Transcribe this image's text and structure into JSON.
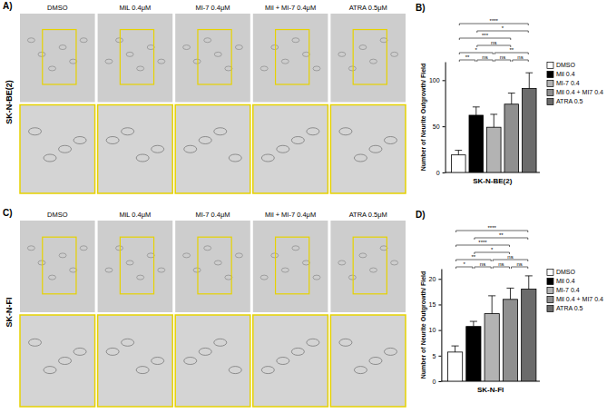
{
  "chart_data": [
    {
      "type": "bar",
      "panel_label": "B)",
      "x_label": "SK-N-BE(2)",
      "y_label": "Number of Neurite Outgrowth/ Field",
      "categories": [
        "DMSO",
        "Mil 0.4",
        "MI-7 0.4",
        "Mil 0.4 + MI7 0.4",
        "ATRA 0.5"
      ],
      "values": [
        19,
        62,
        49,
        74,
        91
      ],
      "errors": [
        5,
        9,
        14,
        12,
        17
      ],
      "colors": [
        "#ffffff",
        "#000000",
        "#b3b3b3",
        "#8f8f8f",
        "#6b6b6b"
      ],
      "ylim": [
        0,
        120
      ],
      "yticks": [
        0,
        50,
        100
      ],
      "grid": false,
      "legend": "right",
      "tick_labels": "y",
      "annotations": [
        {
          "from": 0,
          "to": 1,
          "label": "**"
        },
        {
          "from": 1,
          "to": 2,
          "label": "ns"
        },
        {
          "from": 2,
          "to": 3,
          "label": "ns"
        },
        {
          "from": 3,
          "to": 4,
          "label": "ns"
        },
        {
          "from": 0,
          "to": 2,
          "label": "*"
        },
        {
          "from": 1,
          "to": 3,
          "label": "ns"
        },
        {
          "from": 2,
          "to": 4,
          "label": "**"
        },
        {
          "from": 0,
          "to": 3,
          "label": "***"
        },
        {
          "from": 1,
          "to": 4,
          "label": "*"
        },
        {
          "from": 0,
          "to": 4,
          "label": "****"
        }
      ]
    },
    {
      "type": "bar",
      "panel_label": "D)",
      "x_label": "SK-N-FI",
      "y_label": "Number of Neurite Outgrowth/ Field",
      "categories": [
        "DMSO",
        "Mil 0.4",
        "MI-7 0.4",
        "Mil 0.4 + MI7 0.4",
        "ATRA 0.5"
      ],
      "values": [
        5.7,
        10.7,
        13.2,
        16,
        18
      ],
      "errors": [
        1.2,
        1,
        3.5,
        2.2,
        2.6
      ],
      "colors": [
        "#ffffff",
        "#000000",
        "#b3b3b3",
        "#8f8f8f",
        "#6b6b6b"
      ],
      "ylim": [
        0,
        22
      ],
      "yticks": [
        0,
        5,
        10,
        15,
        20
      ],
      "grid": false,
      "legend": "right",
      "tick_labels": "y",
      "annotations": [
        {
          "from": 0,
          "to": 1,
          "label": "*"
        },
        {
          "from": 1,
          "to": 2,
          "label": "ns"
        },
        {
          "from": 2,
          "to": 3,
          "label": "ns"
        },
        {
          "from": 3,
          "to": 4,
          "label": "ns"
        },
        {
          "from": 0,
          "to": 2,
          "label": "**"
        },
        {
          "from": 1,
          "to": 3,
          "label": "*"
        },
        {
          "from": 2,
          "to": 4,
          "label": "ns"
        },
        {
          "from": 0,
          "to": 3,
          "label": "****"
        },
        {
          "from": 1,
          "to": 4,
          "label": "**"
        },
        {
          "from": 0,
          "to": 4,
          "label": "****"
        }
      ]
    }
  ],
  "image_panels": [
    {
      "letter": "A)",
      "row_label": "SK-N-BE(2)",
      "columns": [
        "DMSO",
        "MiL 0.4μM",
        "MI-7 0.4μM",
        "Mil + MI-7 0.4μM",
        "ATRA 0.5μM"
      ]
    },
    {
      "letter": "C)",
      "row_label": "SK-N-FI",
      "columns": [
        "DMSO",
        "MiL 0.4μM",
        "MI-7 0.4μM",
        "Mil + MI-7 0.4μM",
        "ATRA 0.5μM"
      ]
    }
  ]
}
